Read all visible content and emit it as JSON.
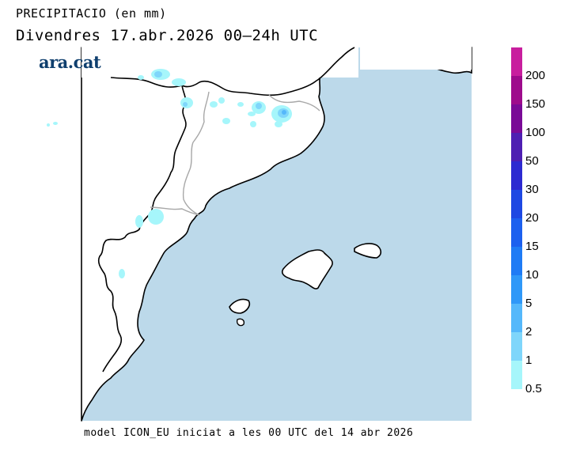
{
  "header": {
    "title": "PRECIPITACIO (en mm)",
    "subtitle": "Divendres  17.abr.2026 00—24h UTC"
  },
  "brand": {
    "logo_text": "ara.cat"
  },
  "footer": {
    "text": "model ICON_EU iniciat a les 00 UTC del 14 abr 2026"
  },
  "legend": {
    "colors": [
      "#c81e9e",
      "#9e0b8c",
      "#7a0a97",
      "#4e1fb2",
      "#2d2ad1",
      "#1e48e3",
      "#1c60ef",
      "#1f7bf5",
      "#2f98f8",
      "#55b8fb",
      "#7fd6fb",
      "#a6f6fb"
    ],
    "labels": [
      "200",
      "150",
      "100",
      "50",
      "30",
      "20",
      "15",
      "10",
      "5",
      "2",
      "1",
      "0.5"
    ]
  },
  "map": {
    "sea_color": "#bcd9ea",
    "land_color": "#ffffff",
    "coast_color": "#000000",
    "border_color": "#a9a9a9"
  }
}
